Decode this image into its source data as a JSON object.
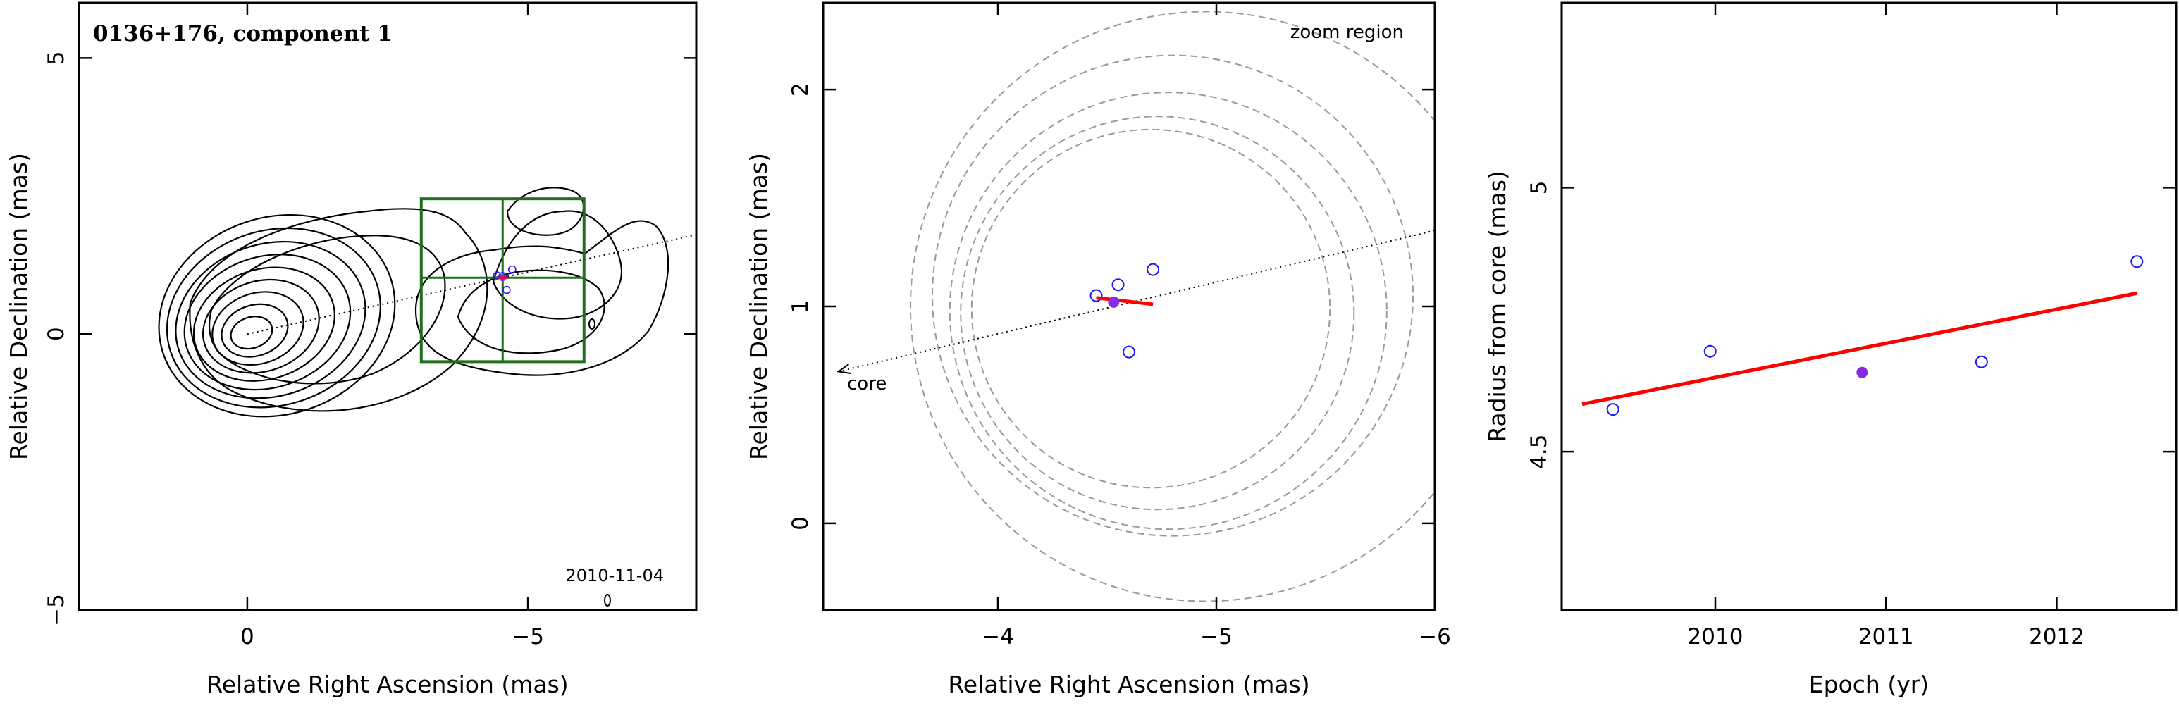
{
  "chart_data": [
    {
      "type": "contour",
      "title": "0136+176, component 1",
      "xlabel": "Relative Right Ascension (mas)",
      "ylabel": "Relative Declination (mas)",
      "xlim": [
        3,
        -8
      ],
      "ylim": [
        -5,
        6
      ],
      "x_ticks": [
        0,
        -5
      ],
      "x_tick_labels": [
        "0",
        "−5"
      ],
      "y_ticks": [
        -5,
        0,
        5
      ],
      "y_tick_labels": [
        "−5",
        "0",
        "5"
      ],
      "annotation": "2010-11-04",
      "components": [
        {
          "x": -4.55,
          "y": 1.05
        },
        {
          "x": -4.72,
          "y": 1.17
        },
        {
          "x": -4.62,
          "y": 0.8
        },
        {
          "x": -4.45,
          "y": 1.06
        }
      ],
      "current_component": {
        "x": -4.55,
        "y": 1.02
      },
      "direction_line": {
        "from": [
          0,
          0
        ],
        "to": [
          -8,
          1.8
        ]
      },
      "zoom_box": {
        "x": [
          -3.1,
          -6.0
        ],
        "y": [
          -0.5,
          2.45
        ],
        "cross_x": -4.55,
        "cross_y": 1.02
      },
      "colors": {
        "contours": "#000000",
        "box": "#1f6f1f",
        "points": "#1a1aff",
        "current": "#8a2be2",
        "fit": "#ff0000"
      }
    },
    {
      "type": "scatter",
      "title": "",
      "xlabel": "Relative Right Ascension (mas)",
      "ylabel": "Relative Declination (mas)",
      "xlim": [
        -3.2,
        -6.0
      ],
      "ylim": [
        -0.4,
        2.4
      ],
      "x_ticks": [
        -4,
        -5,
        -6
      ],
      "x_tick_labels": [
        "−4",
        "−5",
        "−6"
      ],
      "y_ticks": [
        0,
        1,
        2
      ],
      "y_tick_labels": [
        "0",
        "1",
        "2"
      ],
      "labels": {
        "zoom": "zoom region",
        "core": "core"
      },
      "points": [
        {
          "x": -4.45,
          "y": 1.05
        },
        {
          "x": -4.55,
          "y": 1.1
        },
        {
          "x": -4.71,
          "y": 1.17
        },
        {
          "x": -4.6,
          "y": 0.79
        }
      ],
      "current_point": {
        "x": -4.53,
        "y": 1.02
      },
      "fit_segment": {
        "from": [
          -4.45,
          1.04
        ],
        "to": [
          -4.71,
          1.01
        ]
      },
      "core_arrow": {
        "from": [
          -6.0,
          1.35
        ],
        "to": [
          -3.27,
          0.7
        ]
      },
      "circles": [
        {
          "cx": -4.95,
          "cy": 1.0,
          "r": 1.35
        },
        {
          "cx": -4.8,
          "cy": 1.05,
          "r": 1.1
        },
        {
          "cx": -4.78,
          "cy": 0.98,
          "r": 1.0
        },
        {
          "cx": -4.73,
          "cy": 0.97,
          "r": 0.9
        },
        {
          "cx": -4.7,
          "cy": 0.99,
          "r": 0.82
        }
      ],
      "colors": {
        "points": "#1a1aff",
        "current": "#8a2be2",
        "fit": "#ff0000",
        "circles": "#9a9a9a"
      }
    },
    {
      "type": "scatter",
      "title": "",
      "xlabel": "Epoch (yr)",
      "ylabel": "Radius from core (mas)",
      "xlim": [
        2009.1,
        2012.7
      ],
      "ylim": [
        4.2,
        5.35
      ],
      "x_ticks": [
        2010,
        2011,
        2012
      ],
      "x_tick_labels": [
        "2010",
        "2011",
        "2012"
      ],
      "y_ticks": [
        4.5,
        5
      ],
      "y_tick_labels": [
        "4.5",
        "5"
      ],
      "points": [
        {
          "x": 2009.4,
          "y": 4.58
        },
        {
          "x": 2009.97,
          "y": 4.69
        },
        {
          "x": 2011.56,
          "y": 4.67
        },
        {
          "x": 2012.47,
          "y": 4.86
        }
      ],
      "current_point": {
        "x": 2010.86,
        "y": 4.65
      },
      "fit_line": {
        "from": [
          2009.22,
          4.59
        ],
        "to": [
          2012.47,
          4.8
        ]
      },
      "colors": {
        "points": "#1a1aff",
        "current": "#8a2be2",
        "fit": "#ff0000"
      }
    }
  ]
}
